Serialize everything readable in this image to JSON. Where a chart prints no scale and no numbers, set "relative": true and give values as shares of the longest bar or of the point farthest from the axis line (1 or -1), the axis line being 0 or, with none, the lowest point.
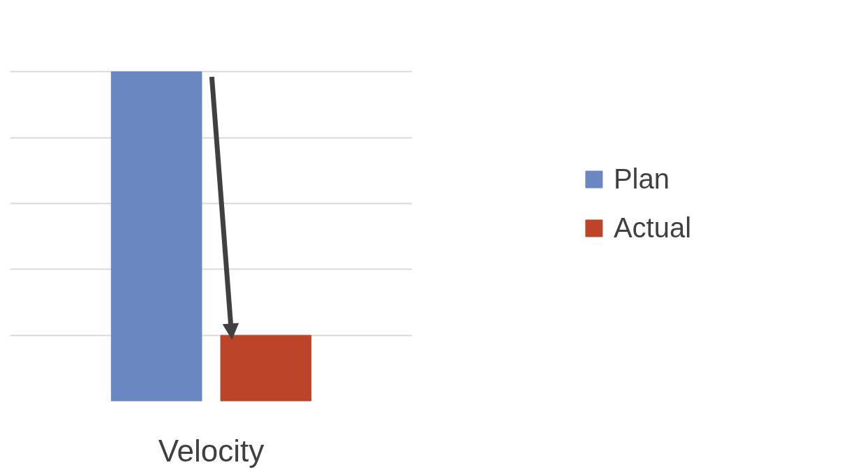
{
  "chart_data": {
    "type": "bar",
    "categories": [
      "Velocity"
    ],
    "relative": true,
    "grid": "y",
    "legend": "right",
    "series": [
      {
        "name": "Plan",
        "color": "#6a87c2",
        "values": [
          1
        ]
      },
      {
        "name": "Actual",
        "color": "#bc4529",
        "values": [
          0.2
        ]
      }
    ]
  }
}
